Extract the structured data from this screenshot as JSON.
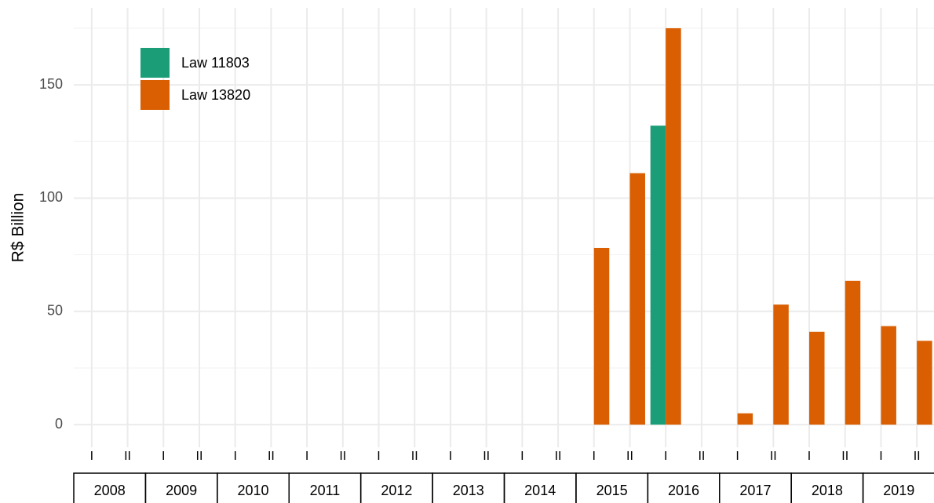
{
  "chart_data": {
    "type": "bar",
    "ylabel": "R$ Billion",
    "categories": [
      "I",
      "II",
      "I",
      "II",
      "I",
      "II",
      "I",
      "II",
      "I",
      "II",
      "I",
      "II",
      "I",
      "II",
      "I",
      "II",
      "I",
      "II",
      "I",
      "II",
      "I",
      "II",
      "I",
      "II"
    ],
    "years": [
      "2008",
      "2009",
      "2010",
      "2011",
      "2012",
      "2013",
      "2014",
      "2015",
      "2016",
      "2017",
      "2018",
      "2019"
    ],
    "series": [
      {
        "name": "Law 11803",
        "color": "#1b9e77",
        "values": [
          null,
          null,
          null,
          null,
          null,
          null,
          null,
          null,
          null,
          null,
          null,
          null,
          null,
          null,
          null,
          null,
          132,
          null,
          null,
          null,
          null,
          null,
          null,
          null
        ]
      },
      {
        "name": "Law 13820",
        "color": "#d95f02",
        "values": [
          null,
          null,
          null,
          null,
          null,
          null,
          null,
          null,
          null,
          null,
          null,
          null,
          null,
          null,
          78,
          111,
          175,
          null,
          5,
          53,
          41,
          63.5,
          43.5,
          37
        ]
      }
    ],
    "ylim": [
      -10,
      184
    ],
    "yticks": [
      0,
      50,
      100,
      150
    ],
    "y_minor_ticks": [
      25,
      75,
      125,
      175
    ],
    "grid": true,
    "legend": "top-left"
  }
}
